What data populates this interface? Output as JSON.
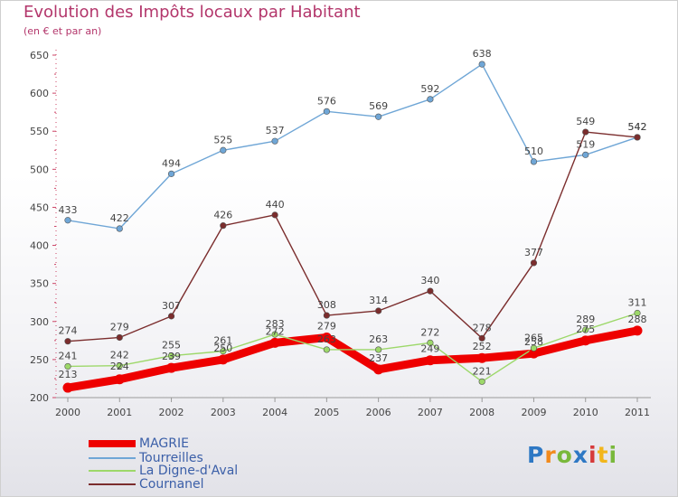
{
  "title": "Evolution des Impôts locaux par Habitant",
  "subtitle": "(en € et par an)",
  "logo_text": [
    "P",
    "r",
    "o",
    "x",
    "i",
    "t",
    "i"
  ],
  "logo_colors": [
    "#2e78c4",
    "#f28a1c",
    "#79b83b",
    "#2e78c4",
    "#d63a3a",
    "#f2b61c",
    "#79b83b"
  ],
  "chart_data": {
    "type": "line",
    "x": [
      "2000",
      "2001",
      "2002",
      "2003",
      "2004",
      "2005",
      "2006",
      "2007",
      "2008",
      "2009",
      "2010",
      "2011"
    ],
    "ylim": [
      200,
      650
    ],
    "yticks": [
      200,
      250,
      300,
      350,
      400,
      450,
      500,
      550,
      600,
      650
    ],
    "grid": false,
    "legend_position": "bottom-left",
    "series": [
      {
        "name": "MAGRIE",
        "color": "#ee0000",
        "values": [
          213,
          224,
          239,
          250,
          272,
          279,
          237,
          249,
          252,
          258,
          275,
          288
        ],
        "labels": [
          "213",
          "224",
          "239",
          "250",
          "272",
          "279",
          "237",
          "249",
          "252",
          "258",
          "275",
          "288"
        ]
      },
      {
        "name": "Tourreilles",
        "color": "#6fa6d6",
        "values": [
          433,
          422,
          494,
          525,
          537,
          576,
          569,
          592,
          638,
          510,
          519,
          542
        ],
        "labels": [
          "433",
          "422",
          "494",
          "525",
          "537",
          "576",
          "569",
          "592",
          "638",
          "510",
          "519",
          "542"
        ]
      },
      {
        "name": "La Digne-d'Aval",
        "color": "#9dd86a",
        "values": [
          241,
          242,
          255,
          261,
          283,
          263,
          263,
          272,
          221,
          265,
          289,
          311
        ],
        "labels": [
          "241",
          "242",
          "255",
          "261",
          "283",
          "263",
          "263",
          "272",
          "221",
          "265",
          "289",
          "311"
        ]
      },
      {
        "name": "Cournanel",
        "color": "#7b2d2d",
        "values": [
          274,
          279,
          307,
          426,
          440,
          308,
          314,
          340,
          278,
          377,
          549,
          542
        ],
        "labels": [
          "274",
          "279",
          "307",
          "426",
          "440",
          "308",
          "314",
          "340",
          "278",
          "377",
          "549",
          "542"
        ]
      }
    ]
  }
}
